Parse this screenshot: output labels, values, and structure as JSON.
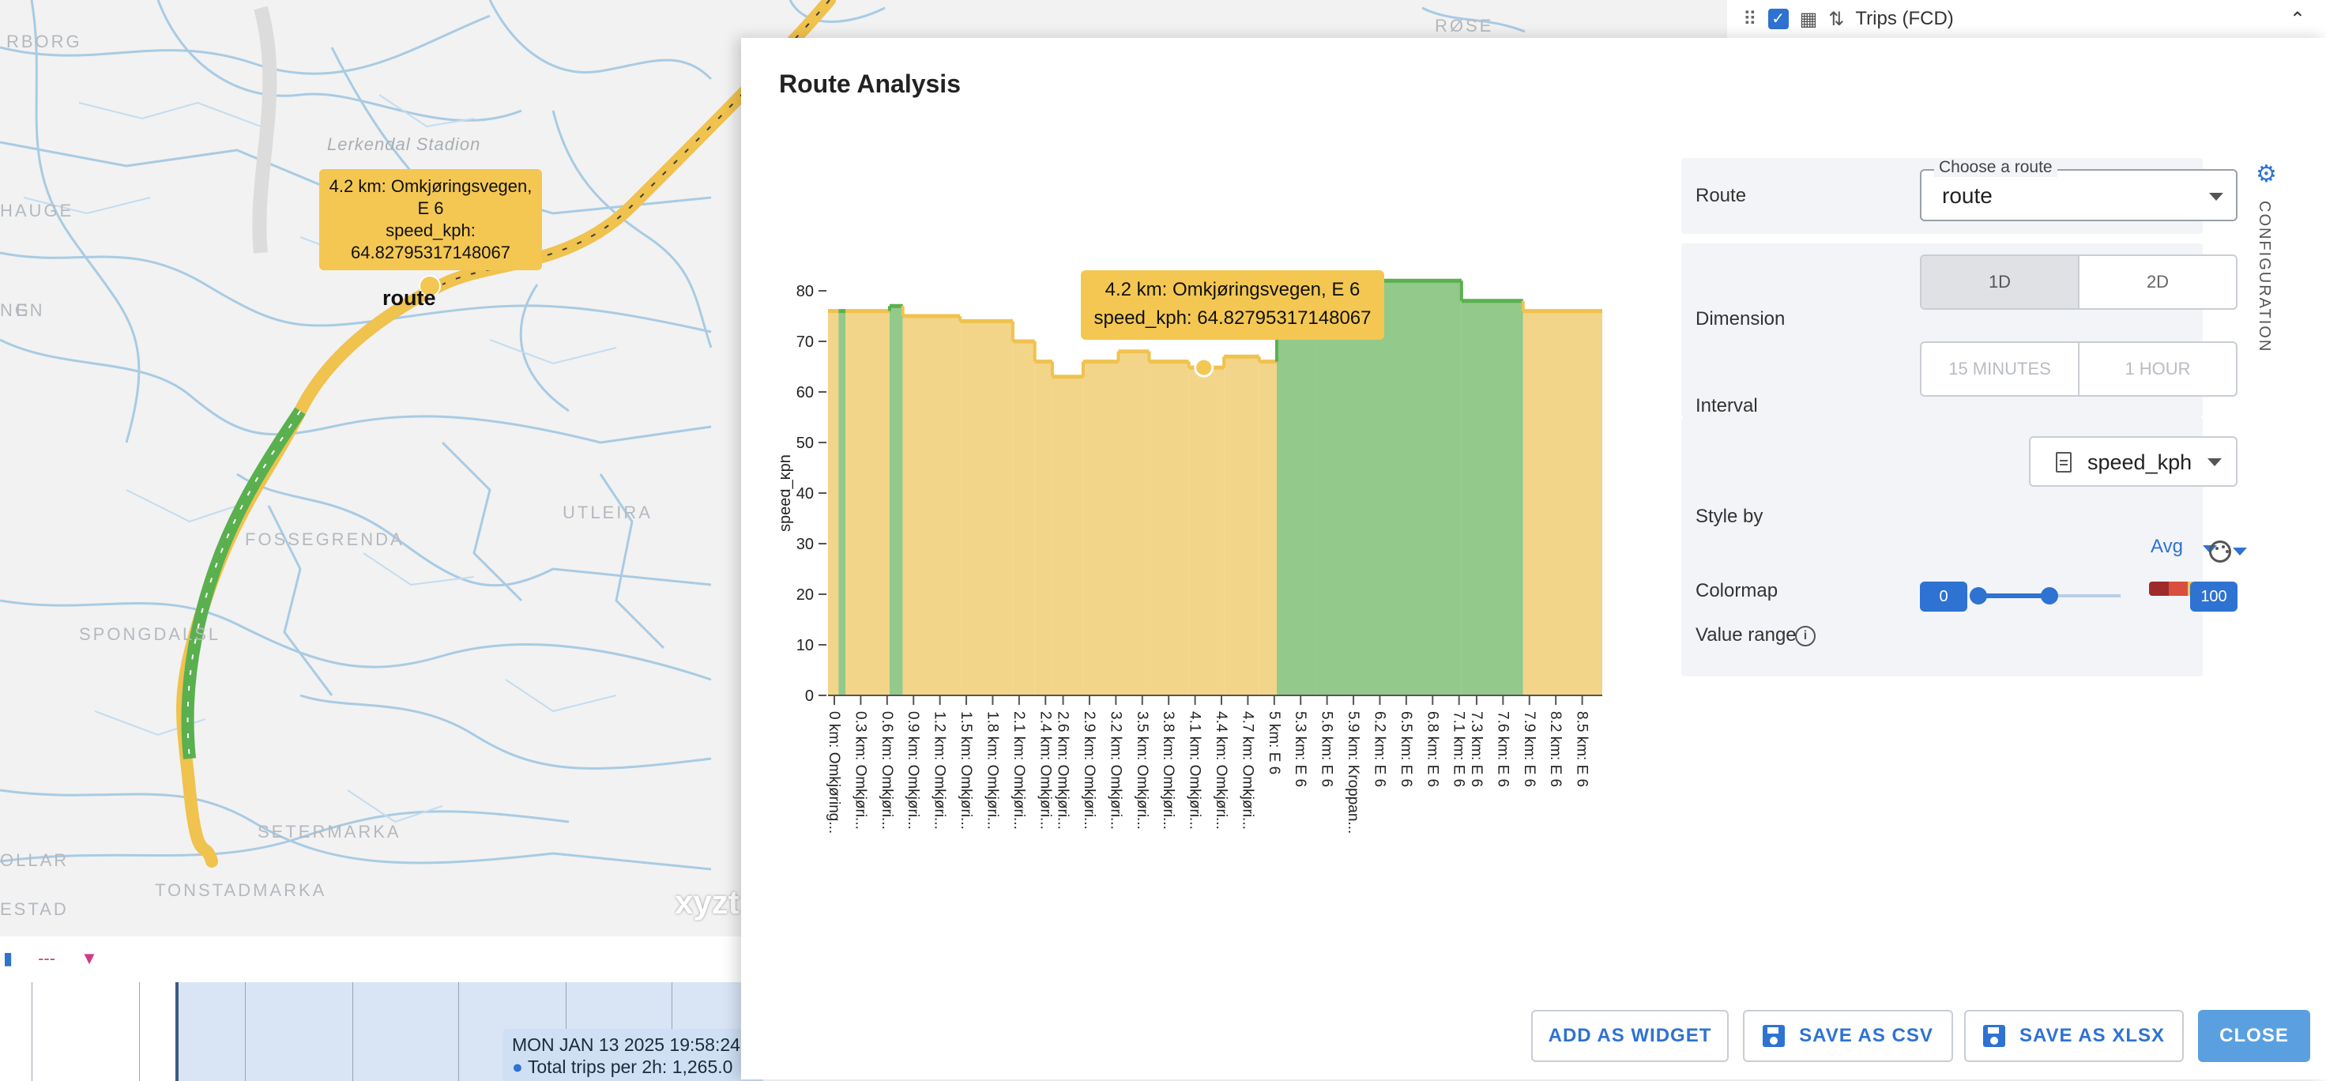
{
  "map": {
    "labels": [
      "RBORG",
      "HAUGE",
      "FOSSEGRENDA",
      "UTLEIRA",
      "SPONGDALSL",
      "SETERMARKA",
      "TONSTADMARKA",
      "OLLAR",
      "ESTAD",
      "Lerkendal Stadion",
      "RØSE",
      "NG",
      "EN"
    ],
    "route_label": "route",
    "tooltip": {
      "line1": "4.2 km: Omkjøringsvegen,\nE 6",
      "line2": "speed_kph:\n64.82795317148067"
    },
    "watermark": "xyzt"
  },
  "layer_panel": {
    "name": "Trips (FCD)"
  },
  "timeline": {
    "controls": [
      "---"
    ],
    "tooltip": {
      "date": "MON JAN 13 2025 19:58:24",
      "value": "Total trips per 2h: 1,265.0"
    }
  },
  "modal": {
    "title": "Route Analysis",
    "config": {
      "route_label": "Route",
      "route_legend": "Choose a route",
      "route_value": "route",
      "dimension_label": "Dimension",
      "dimension_options": [
        "1D",
        "2D"
      ],
      "dimension_selected": "1D",
      "interval_label": "Interval",
      "interval_options": [
        "15 MINUTES",
        "1 HOUR"
      ],
      "style_by_label": "Style by",
      "style_by_value": "speed_kph",
      "aggregation": "Avg",
      "colormap_label": "Colormap",
      "colormap_colors": [
        "#9e2a2b",
        "#d94f3d",
        "#f3c752",
        "#5ab04f"
      ],
      "value_range_label": "Value range",
      "value_range_min": "0",
      "value_range_max": "100",
      "value_range_low": 0,
      "value_range_high": 0.5,
      "config_tab_label": "CONFIGURATION"
    },
    "chart_tooltip": {
      "line1": "4.2 km: Omkjøringsvegen, E 6",
      "line2": "speed_kph: 64.82795317148067"
    },
    "buttons": {
      "add_widget": "ADD AS WIDGET",
      "save_csv": "SAVE AS CSV",
      "save_xlsx": "SAVE AS XLSX",
      "close": "CLOSE"
    },
    "colors": {
      "yellow": "#f3d58a",
      "yellow_line": "#f0c24e",
      "green": "#93c98a",
      "green_line": "#5ab04f",
      "accent": "#2e72d2"
    }
  },
  "chart_data": {
    "type": "area",
    "ylabel": "speed_kph",
    "ylim": [
      0,
      80
    ],
    "yticks": [
      0,
      10,
      20,
      30,
      40,
      50,
      60,
      70,
      80
    ],
    "xlim": [
      0,
      8.8
    ],
    "x_tick_labels": [
      "0 km: Omkjøring...",
      "0.3 km: Omkjøri...",
      "0.6 km: Omkjøri...",
      "0.9 km: Omkjøri...",
      "1.2 km: Omkjøri...",
      "1.5 km: Omkjøri...",
      "1.8 km: Omkjøri...",
      "2.1 km: Omkjøri...",
      "2.4 km: Omkjøri...",
      "2.6 km: Omkjøri...",
      "2.9 km: Omkjøri...",
      "3.2 km: Omkjøri...",
      "3.5 km: Omkjøri...",
      "3.8 km: Omkjøri...",
      "4.1 km: Omkjøri...",
      "4.4 km: Omkjøri...",
      "4.7 km: Omkjøri...",
      "5 km: E 6",
      "5.3 km: E 6",
      "5.6 km: E 6",
      "5.9 km: Kroppan...",
      "6.2 km: E 6",
      "6.5 km: E 6",
      "6.8 km: E 6",
      "7.1 km: E 6",
      "7.3 km: E 6",
      "7.6 km: E 6",
      "7.9 km: E 6",
      "8.2 km: E 6",
      "8.5 km: E 6"
    ],
    "x_tick_positions": [
      0,
      0.3,
      0.6,
      0.9,
      1.2,
      1.5,
      1.8,
      2.1,
      2.4,
      2.6,
      2.9,
      3.2,
      3.5,
      3.8,
      4.1,
      4.4,
      4.7,
      5.0,
      5.3,
      5.6,
      5.9,
      6.2,
      6.5,
      6.8,
      7.1,
      7.3,
      7.6,
      7.9,
      8.2,
      8.5
    ],
    "segments": [
      {
        "x0": 0.0,
        "x1": 0.12,
        "value": 76,
        "band": "yellow"
      },
      {
        "x0": 0.12,
        "x1": 0.2,
        "value": 76,
        "band": "green"
      },
      {
        "x0": 0.2,
        "x1": 0.7,
        "value": 76,
        "band": "yellow"
      },
      {
        "x0": 0.7,
        "x1": 0.85,
        "value": 77,
        "band": "green"
      },
      {
        "x0": 0.85,
        "x1": 1.5,
        "value": 75,
        "band": "yellow"
      },
      {
        "x0": 1.5,
        "x1": 2.1,
        "value": 74,
        "band": "yellow"
      },
      {
        "x0": 2.1,
        "x1": 2.35,
        "value": 70,
        "band": "yellow"
      },
      {
        "x0": 2.35,
        "x1": 2.55,
        "value": 66,
        "band": "yellow"
      },
      {
        "x0": 2.55,
        "x1": 2.9,
        "value": 63,
        "band": "yellow"
      },
      {
        "x0": 2.9,
        "x1": 3.3,
        "value": 66,
        "band": "yellow"
      },
      {
        "x0": 3.3,
        "x1": 3.65,
        "value": 68,
        "band": "yellow"
      },
      {
        "x0": 3.65,
        "x1": 4.1,
        "value": 66,
        "band": "yellow"
      },
      {
        "x0": 4.1,
        "x1": 4.5,
        "value": 64.83,
        "band": "yellow"
      },
      {
        "x0": 4.5,
        "x1": 4.9,
        "value": 67,
        "band": "yellow"
      },
      {
        "x0": 4.9,
        "x1": 5.1,
        "value": 66,
        "band": "yellow"
      },
      {
        "x0": 5.1,
        "x1": 5.55,
        "value": 79,
        "band": "green"
      },
      {
        "x0": 5.55,
        "x1": 6.2,
        "value": 81,
        "band": "green"
      },
      {
        "x0": 6.2,
        "x1": 7.2,
        "value": 82,
        "band": "green"
      },
      {
        "x0": 7.2,
        "x1": 7.9,
        "value": 78,
        "band": "green"
      },
      {
        "x0": 7.9,
        "x1": 8.8,
        "value": 76,
        "band": "yellow"
      }
    ],
    "highlight": {
      "x": 4.2,
      "value": 64.83
    }
  }
}
